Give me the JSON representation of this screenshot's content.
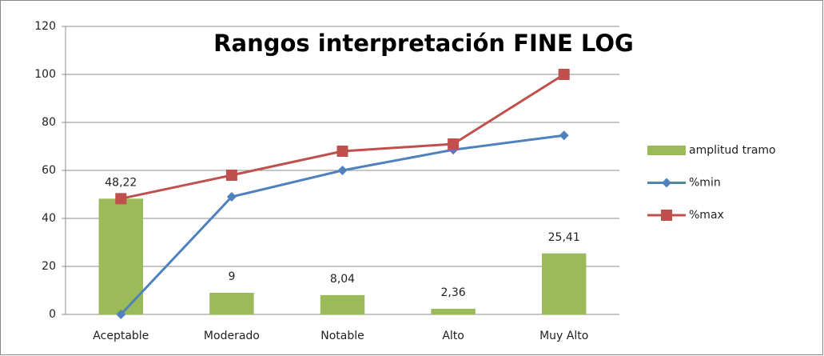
{
  "chart_data": {
    "type": "bar",
    "title": "Rangos interpretación FINE LOG",
    "categories": [
      "Aceptable",
      "Moderado",
      "Notable",
      "Alto",
      "Muy Alto"
    ],
    "series": [
      {
        "name": "amplitud tramo",
        "type": "bar",
        "color": "#9bbb59",
        "values": [
          48.22,
          9,
          8.04,
          2.36,
          25.41
        ],
        "value_labels": [
          "48,22",
          "9",
          "8,04",
          "2,36",
          "25,41"
        ]
      },
      {
        "name": "%min",
        "type": "line",
        "marker": "diamond",
        "color": "#4f81bd",
        "values": [
          0,
          49,
          60,
          68.6,
          74.6
        ]
      },
      {
        "name": "%max",
        "type": "line",
        "marker": "square",
        "color": "#c0504d",
        "values": [
          48.22,
          58,
          68,
          71,
          100
        ]
      }
    ],
    "ylim": [
      0,
      120
    ],
    "yticks": [
      0,
      20,
      40,
      60,
      80,
      100,
      120
    ],
    "grid": true,
    "legend": "right"
  }
}
